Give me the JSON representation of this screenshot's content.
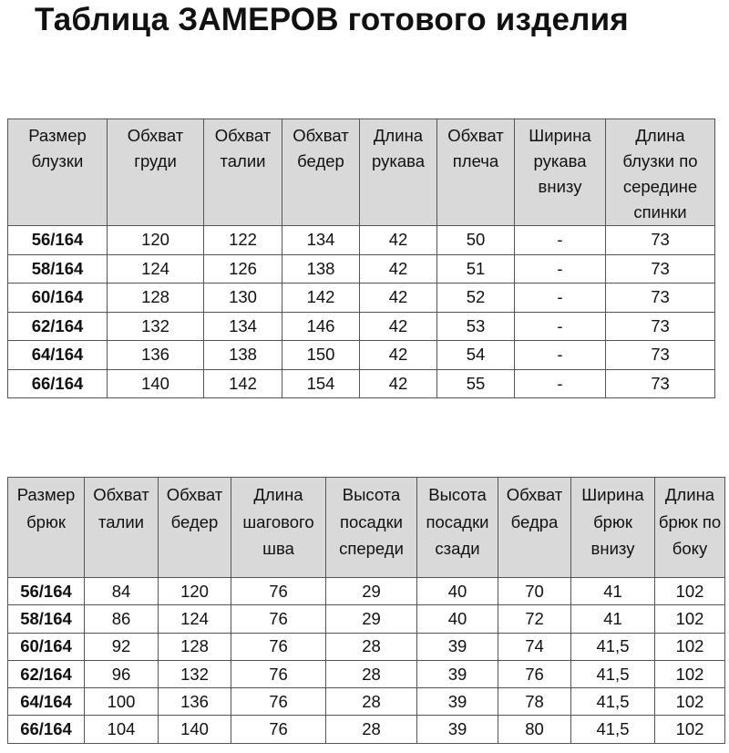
{
  "title": "Таблица ЗАМЕРОВ готового изделия",
  "blouse_table": {
    "headers": [
      "Размер блузки",
      "Обхват груди",
      "Обхват талии",
      "Обхват бедер",
      "Длина рукава",
      "Обхват плеча",
      "Ширина рукава внизу",
      "Длина блузки по середине спинки"
    ],
    "rows": [
      [
        "56/164",
        "120",
        "122",
        "134",
        "42",
        "50",
        "-",
        "73"
      ],
      [
        "58/164",
        "124",
        "126",
        "138",
        "42",
        "51",
        "-",
        "73"
      ],
      [
        "60/164",
        "128",
        "130",
        "142",
        "42",
        "52",
        "-",
        "73"
      ],
      [
        "62/164",
        "132",
        "134",
        "146",
        "42",
        "53",
        "-",
        "73"
      ],
      [
        "64/164",
        "136",
        "138",
        "150",
        "42",
        "54",
        "-",
        "73"
      ],
      [
        "66/164",
        "140",
        "142",
        "154",
        "42",
        "55",
        "-",
        "73"
      ]
    ]
  },
  "pants_table": {
    "headers": [
      "Размер брюк",
      "Обхват талии",
      "Обхват бедер",
      "Длина шагового шва",
      "Высота посадки спереди",
      "Высота посадки сзади",
      "Обхват бедра",
      "Ширина брюк внизу",
      "Длина брюк по боку"
    ],
    "rows": [
      [
        "56/164",
        "84",
        "120",
        "76",
        "29",
        "40",
        "70",
        "41",
        "102"
      ],
      [
        "58/164",
        "86",
        "124",
        "76",
        "29",
        "40",
        "72",
        "41",
        "102"
      ],
      [
        "60/164",
        "92",
        "128",
        "76",
        "28",
        "39",
        "74",
        "41,5",
        "102"
      ],
      [
        "62/164",
        "96",
        "132",
        "76",
        "28",
        "39",
        "76",
        "41,5",
        "102"
      ],
      [
        "64/164",
        "100",
        "136",
        "76",
        "28",
        "39",
        "78",
        "41,5",
        "102"
      ],
      [
        "66/164",
        "104",
        "140",
        "76",
        "28",
        "39",
        "80",
        "41,5",
        "102"
      ]
    ]
  }
}
